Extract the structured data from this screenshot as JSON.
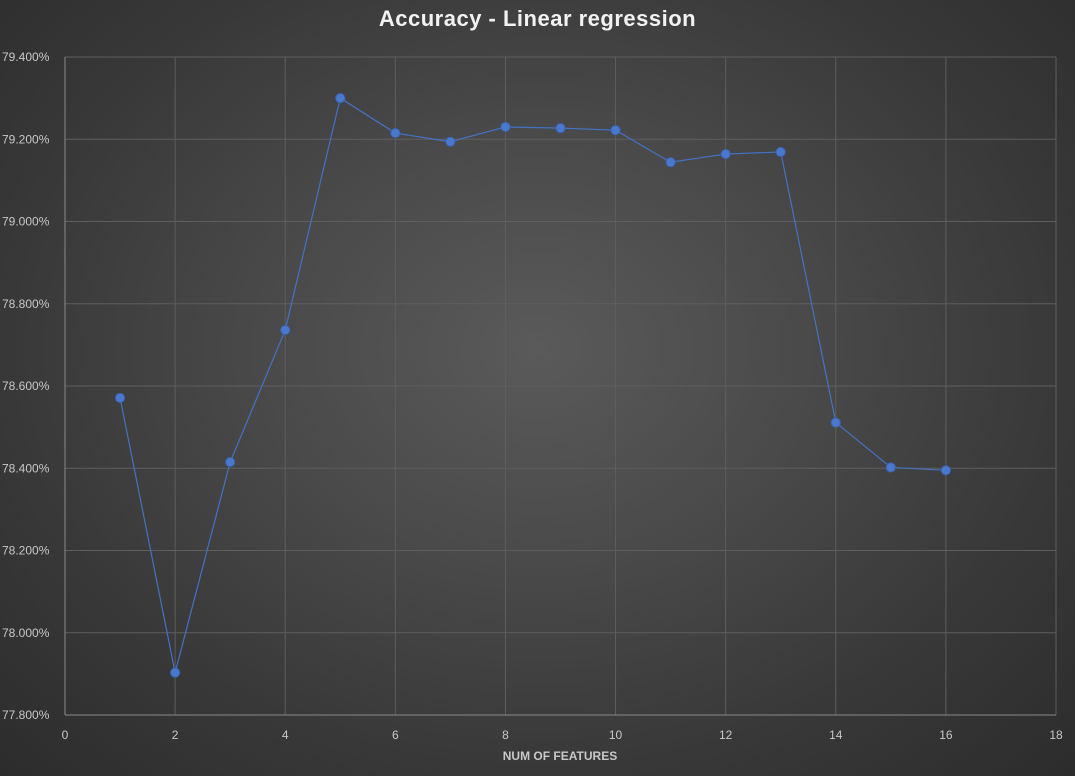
{
  "chart_data": {
    "type": "scatter",
    "title": "Accuracy - Linear regression",
    "xlabel": "NUM OF FEATURES",
    "ylabel": "",
    "xlim": [
      0,
      18
    ],
    "ylim": [
      77.8,
      79.4
    ],
    "x_ticks": [
      "0",
      "2",
      "4",
      "6",
      "8",
      "10",
      "12",
      "14",
      "16",
      "18"
    ],
    "y_ticks": [
      "79.400%",
      "79.200%",
      "79.000%",
      "78.800%",
      "78.600%",
      "78.400%",
      "78.200%",
      "78.000%",
      "77.800%"
    ],
    "grid": true,
    "legend": "none",
    "line_style": "straight lines with markers",
    "series": [
      {
        "color": "#4472c4",
        "x": [
          1,
          2,
          3,
          4,
          5,
          6,
          7,
          8,
          9,
          10,
          11,
          12,
          13,
          14,
          15,
          16
        ],
        "y": [
          78.571,
          77.903,
          78.415,
          78.736,
          79.3,
          79.215,
          79.194,
          79.23,
          79.227,
          79.222,
          79.144,
          79.164,
          79.169,
          78.511,
          78.402,
          78.395
        ]
      }
    ]
  },
  "colors": {
    "series": "#4472c4",
    "marker": "#4a78cc",
    "grid": "#5e5e5e",
    "text": "#c8c8c8",
    "title": "#f2f2f2"
  }
}
